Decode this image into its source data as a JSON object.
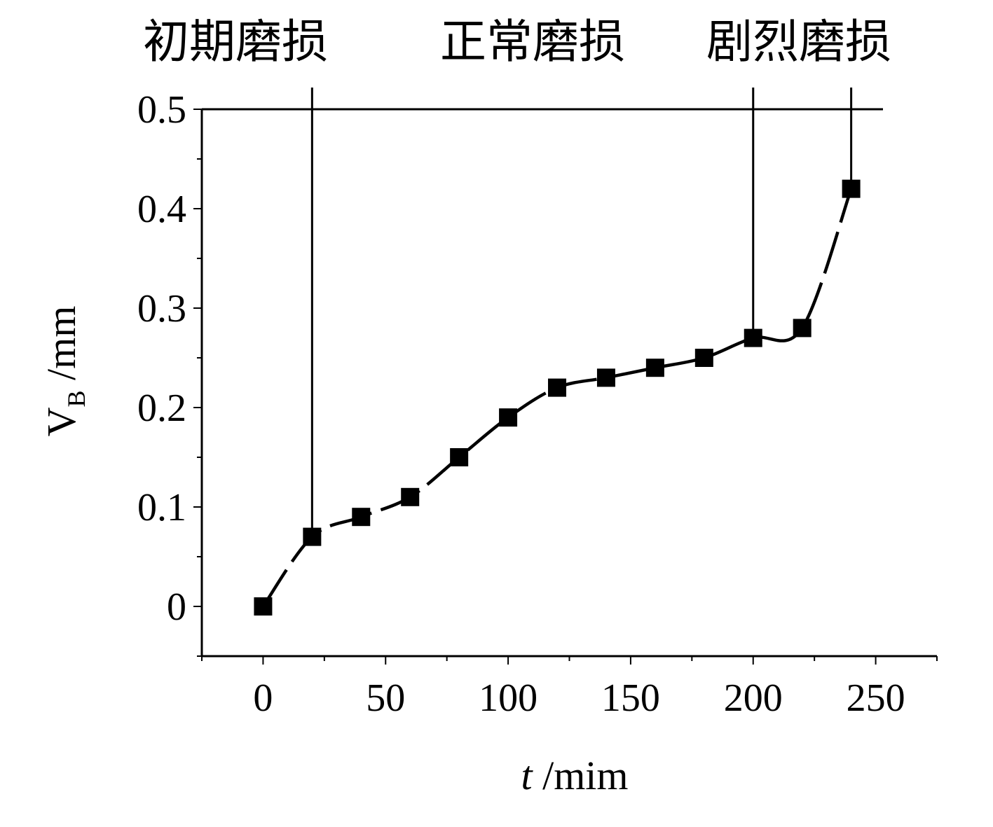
{
  "chart_data": {
    "type": "line",
    "title": "",
    "xlabel": {
      "italic": "t",
      "rest": " /mim"
    },
    "ylabel": {
      "main": "V",
      "sub": "B",
      "rest": " /mm"
    },
    "xlim": [
      -25,
      275
    ],
    "ylim": [
      -0.05,
      0.5
    ],
    "xticks": [
      0,
      50,
      100,
      150,
      200,
      250
    ],
    "xtick_labels": [
      "0",
      "50",
      "100",
      "150",
      "200",
      "250"
    ],
    "yticks": [
      0,
      0.1,
      0.2,
      0.3,
      0.4,
      0.5
    ],
    "ytick_labels": [
      "0",
      "0.1",
      "0.2",
      "0.3",
      "0.4",
      "0.5"
    ],
    "grid": false,
    "series": [
      {
        "marker": "square",
        "line_style": "dashed-smooth",
        "x": [
          0,
          20,
          40,
          60,
          80,
          100,
          120,
          140,
          160,
          180,
          200,
          220,
          240
        ],
        "y": [
          0,
          0.07,
          0.09,
          0.11,
          0.15,
          0.19,
          0.22,
          0.23,
          0.24,
          0.25,
          0.27,
          0.28,
          0.42
        ]
      }
    ],
    "reference_line_y": 0.5,
    "stage_boundaries_x": [
      20,
      200,
      240
    ],
    "stage_labels": [
      "初期磨损",
      "正常磨损",
      "剧烈磨损"
    ],
    "colors": {
      "line": "#000000",
      "marker": "#000000",
      "background": "#ffffff"
    }
  }
}
